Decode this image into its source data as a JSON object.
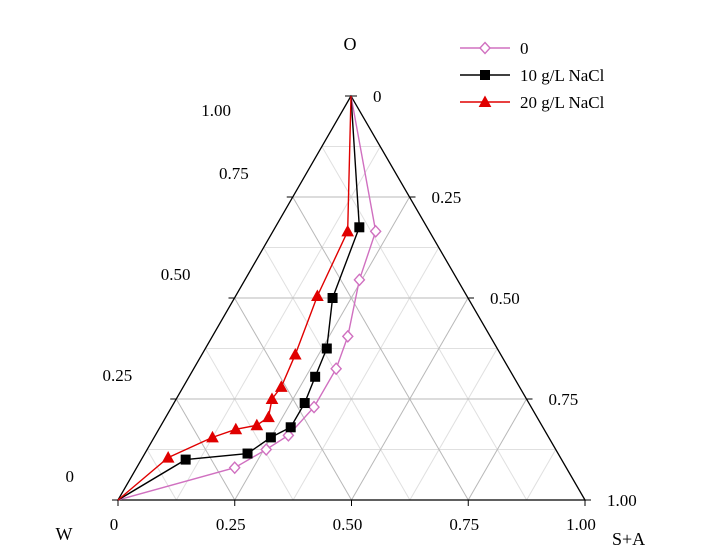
{
  "chart_data": {
    "type": "scatter",
    "subtype": "ternary",
    "vertices": {
      "top": "O",
      "left": "W",
      "right": "S+A"
    },
    "axes": {
      "o_ticks": [
        "0",
        "0.25",
        "0.50",
        "0.75",
        "1.00"
      ],
      "sa_ticks": [
        "0",
        "0.25",
        "0.50",
        "0.75",
        "1.00"
      ],
      "w_ticks": [
        "0",
        "0.25",
        "0.50",
        "0.75",
        "1.00"
      ]
    },
    "legend_position": "top-right",
    "grid": true,
    "series": [
      {
        "name": "0",
        "color": "#d070c0",
        "marker": "diamond-open",
        "points": [
          {
            "o": 1.0,
            "sa": 0.0
          },
          {
            "o": 0.665,
            "sa": 0.22
          },
          {
            "o": 0.545,
            "sa": 0.245
          },
          {
            "o": 0.405,
            "sa": 0.29
          },
          {
            "o": 0.325,
            "sa": 0.305
          },
          {
            "o": 0.23,
            "sa": 0.305
          },
          {
            "o": 0.16,
            "sa": 0.285
          },
          {
            "o": 0.125,
            "sa": 0.255
          },
          {
            "o": 0.08,
            "sa": 0.21
          },
          {
            "o": 0.0,
            "sa": 0.0
          }
        ]
      },
      {
        "name": "10 g/L NaCl",
        "color": "#000000",
        "marker": "square",
        "points": [
          {
            "o": 1.0,
            "sa": 0.0
          },
          {
            "o": 0.675,
            "sa": 0.18
          },
          {
            "o": 0.5,
            "sa": 0.21
          },
          {
            "o": 0.375,
            "sa": 0.26
          },
          {
            "o": 0.305,
            "sa": 0.27
          },
          {
            "o": 0.24,
            "sa": 0.28
          },
          {
            "o": 0.18,
            "sa": 0.28
          },
          {
            "o": 0.155,
            "sa": 0.25
          },
          {
            "o": 0.115,
            "sa": 0.22
          },
          {
            "o": 0.1,
            "sa": 0.095
          },
          {
            "o": 0.0,
            "sa": 0.0
          }
        ]
      },
      {
        "name": "20 g/L NaCl",
        "color": "#e00000",
        "marker": "triangle",
        "points": [
          {
            "o": 1.0,
            "sa": 0.0
          },
          {
            "o": 0.665,
            "sa": 0.16
          },
          {
            "o": 0.505,
            "sa": 0.175
          },
          {
            "o": 0.36,
            "sa": 0.2
          },
          {
            "o": 0.28,
            "sa": 0.21
          },
          {
            "o": 0.25,
            "sa": 0.205
          },
          {
            "o": 0.205,
            "sa": 0.22
          },
          {
            "o": 0.185,
            "sa": 0.205
          },
          {
            "o": 0.175,
            "sa": 0.165
          },
          {
            "o": 0.155,
            "sa": 0.125
          },
          {
            "o": 0.105,
            "sa": 0.055
          },
          {
            "o": 0.0,
            "sa": 0.0
          }
        ]
      }
    ]
  }
}
